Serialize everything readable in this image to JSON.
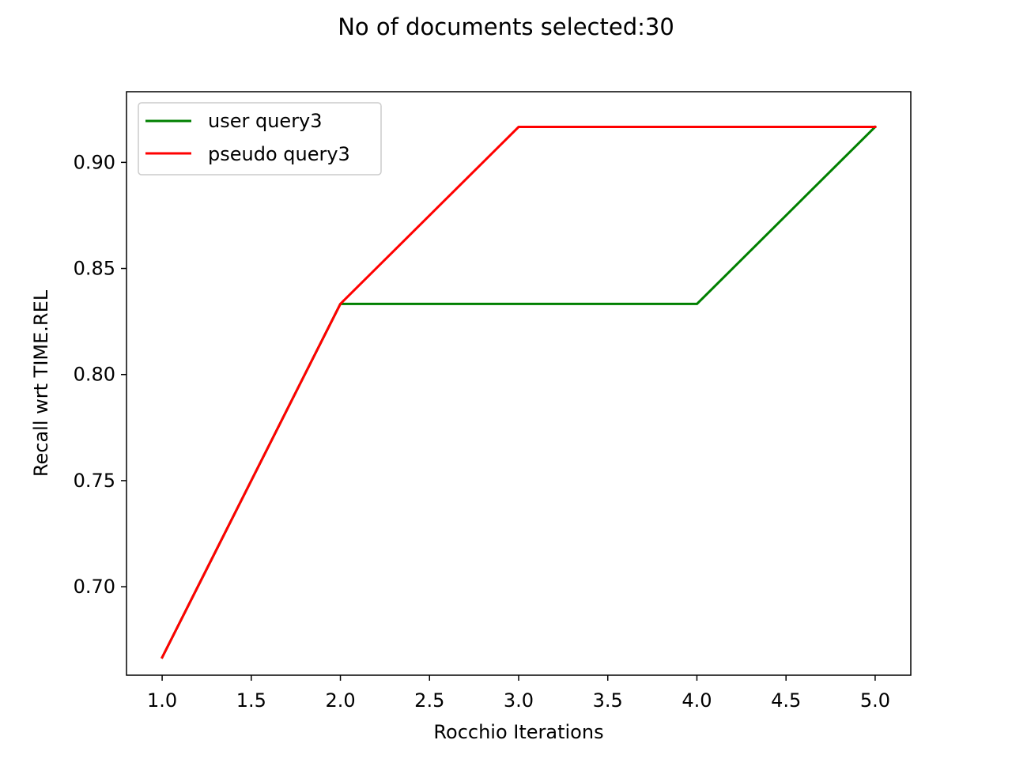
{
  "chart_data": {
    "type": "line",
    "title": "No of documents selected:30",
    "xlabel": "Rocchio Iterations",
    "ylabel": "Recall wrt TIME.REL",
    "x": [
      1,
      2,
      3,
      4,
      5
    ],
    "xlim": [
      0.8,
      5.2
    ],
    "ylim": [
      0.6583,
      0.9333
    ],
    "xticks": [
      "1.0",
      "1.5",
      "2.0",
      "2.5",
      "3.0",
      "3.5",
      "4.0",
      "4.5",
      "5.0"
    ],
    "yticks": [
      "0.70",
      "0.75",
      "0.80",
      "0.85",
      "0.90"
    ],
    "grid": false,
    "legend_position": "top-left",
    "series": [
      {
        "name": "user query3",
        "color": "#008000",
        "values": [
          0.6667,
          0.8333,
          0.8333,
          0.8333,
          0.9167
        ]
      },
      {
        "name": "pseudo query3",
        "color": "#ff0000",
        "values": [
          0.6667,
          0.8333,
          0.9167,
          0.9167,
          0.9167
        ]
      }
    ]
  }
}
